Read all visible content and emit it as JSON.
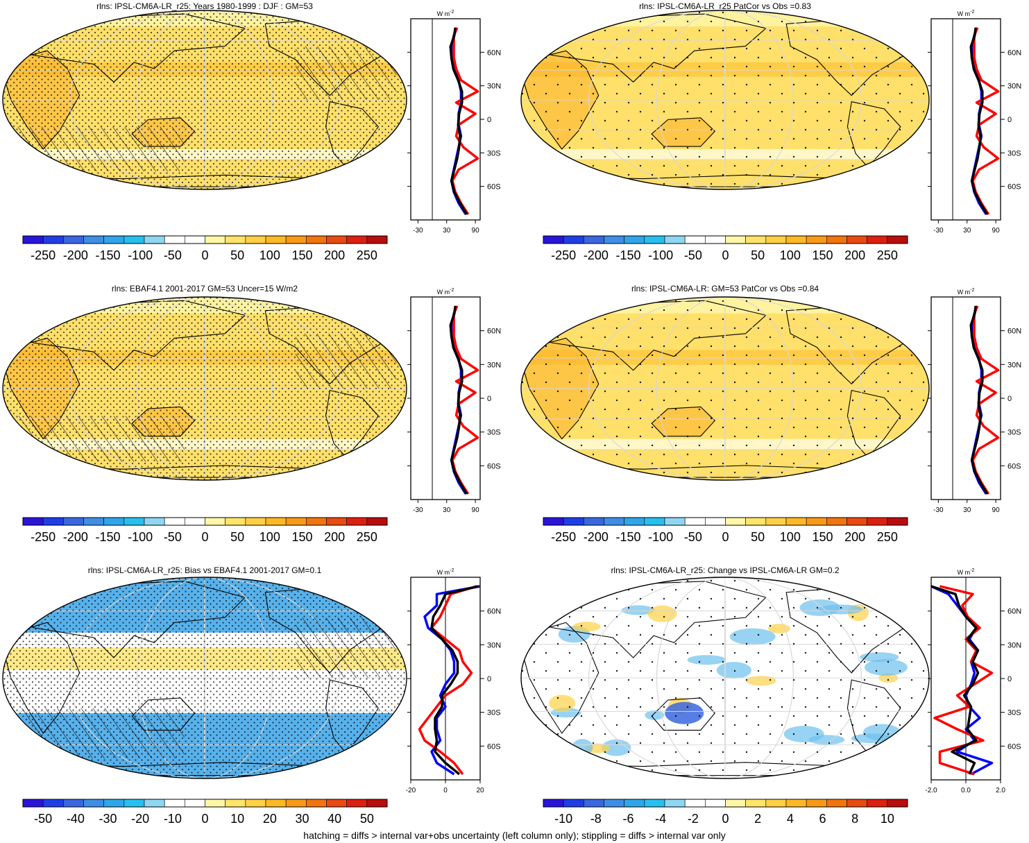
{
  "footer": "hatching = diffs > internal var+obs uncertainty (left column only); stippling = diffs > internal var only",
  "colors": {
    "scale": [
      "#2a14d8",
      "#1f3ee6",
      "#3a67e0",
      "#3f8ee6",
      "#2fa6ea",
      "#27bfee",
      "#8fd6f2",
      "#ffffff",
      "#ffffff",
      "#fff7a8",
      "#ffe46a",
      "#ffd045",
      "#fdb825",
      "#f89a17",
      "#f1740f",
      "#e84a12",
      "#dd1f10",
      "#b80d0d"
    ],
    "obs_line": "#ff0000",
    "model_line": "#0000ff",
    "mean_line": "#000000",
    "grid": "#d7d7d7"
  },
  "panels": [
    {
      "id": "p1",
      "title": "rlns: IPSL-CM6A-LR_r25: Years 1980-1999 : DJF : GM=53",
      "field": "abs",
      "map_fill": "#ffe06a",
      "hatch": true,
      "stipple": "dense",
      "cbar_labels": [
        "-250",
        "-200",
        "-150",
        "-100",
        "-50",
        "0",
        "50",
        "100",
        "150",
        "200",
        "250"
      ],
      "zonal_unit": "W m",
      "zonal_x_labels": [
        "-30",
        "30",
        "90"
      ],
      "zonal_x_values": [
        -30,
        30,
        90
      ],
      "zonal_xlim": [
        -45,
        100
      ],
      "lat_labels": [
        "60N",
        "30N",
        "0",
        "30S",
        "60S"
      ]
    },
    {
      "id": "p2",
      "title": "rlns: IPSL-CM6A-LR_r25 PatCor vs Obs =0.83",
      "field": "abs",
      "map_fill": "#ffe06a",
      "hatch": false,
      "stipple": "sparse",
      "cbar_labels": [
        "-250",
        "-200",
        "-150",
        "-100",
        "-50",
        "0",
        "50",
        "100",
        "150",
        "200",
        "250"
      ],
      "zonal_unit": "W m",
      "zonal_x_labels": [
        "-30",
        "30",
        "90"
      ],
      "zonal_x_values": [
        -30,
        30,
        90
      ],
      "zonal_xlim": [
        -45,
        100
      ],
      "lat_labels": [
        "60N",
        "30N",
        "0",
        "30S",
        "60S"
      ]
    },
    {
      "id": "p3",
      "title": "rlns: EBAF4.1 2001-2017 GM=53 Uncer=15 W/m2",
      "field": "abs",
      "map_fill": "#ffe06a",
      "hatch": true,
      "stipple": "dense",
      "cbar_labels": [
        "-250",
        "-200",
        "-150",
        "-100",
        "-50",
        "0",
        "50",
        "100",
        "150",
        "200",
        "250"
      ],
      "zonal_unit": "W m",
      "zonal_x_labels": [
        "-30",
        "30",
        "90"
      ],
      "zonal_x_values": [
        -30,
        30,
        90
      ],
      "zonal_xlim": [
        -45,
        100
      ],
      "lat_labels": [
        "60N",
        "30N",
        "0",
        "30S",
        "60S"
      ]
    },
    {
      "id": "p4",
      "title": "rlns: IPSL-CM6A-LR: GM=53 PatCor vs Obs =0.84",
      "field": "abs",
      "map_fill": "#ffe06a",
      "hatch": false,
      "stipple": "sparse",
      "cbar_labels": [
        "-250",
        "-200",
        "-150",
        "-100",
        "-50",
        "0",
        "50",
        "100",
        "150",
        "200",
        "250"
      ],
      "zonal_unit": "W m",
      "zonal_x_labels": [
        "-30",
        "30",
        "90"
      ],
      "zonal_x_values": [
        -30,
        30,
        90
      ],
      "zonal_xlim": [
        -45,
        100
      ],
      "lat_labels": [
        "60N",
        "30N",
        "0",
        "30S",
        "60S"
      ]
    },
    {
      "id": "p5",
      "title": "rlns: IPSL-CM6A-LR_r25: Bias vs EBAF4.1 2001-2017 GM=0.1",
      "field": "bias",
      "map_fill": "#ffffff",
      "hatch": true,
      "stipple": "dense",
      "cbar_labels": [
        "-50",
        "-40",
        "-30",
        "-20",
        "-10",
        "0",
        "10",
        "20",
        "30",
        "40",
        "50"
      ],
      "zonal_unit": "W m",
      "zonal_x_labels": [
        "-20",
        "0",
        "20"
      ],
      "zonal_x_values": [
        -20,
        0,
        20
      ],
      "zonal_xlim": [
        -20,
        20
      ],
      "lat_labels": [
        "60N",
        "30N",
        "0",
        "30S",
        "60S"
      ]
    },
    {
      "id": "p6",
      "title": "rlns: IPSL-CM6A-LR_r25: Change vs IPSL-CM6A-LR GM=0.2",
      "field": "change",
      "map_fill": "#ffffff",
      "hatch": false,
      "stipple": "sparse",
      "cbar_labels": [
        "-10",
        "-8",
        "-6",
        "-4",
        "-2",
        "0",
        "2",
        "4",
        "6",
        "8",
        "10"
      ],
      "zonal_unit": "W m",
      "zonal_x_labels": [
        "-2.0",
        "0.0",
        "2.0"
      ],
      "zonal_x_values": [
        -2,
        0,
        2
      ],
      "zonal_xlim": [
        -2,
        2
      ],
      "lat_labels": [
        "60N",
        "30N",
        "0",
        "30S",
        "60S"
      ]
    }
  ],
  "chart_data": [
    {
      "type": "line",
      "title": "rlns: IPSL-CM6A-LR_r25: Years 1980-1999 : DJF : GM=53",
      "xlabel": "W m-2",
      "xlim": [
        -45,
        100
      ],
      "ylim": [
        -90,
        90
      ],
      "y": [
        -85,
        -75,
        -65,
        -55,
        -45,
        -35,
        -25,
        -15,
        -5,
        5,
        15,
        25,
        35,
        45,
        55,
        65,
        75,
        82
      ],
      "series": [
        {
          "values": [
            70,
            55,
            45,
            40,
            45,
            50,
            55,
            60,
            55,
            55,
            60,
            60,
            55,
            45,
            40,
            40,
            45,
            50
          ]
        },
        {
          "values": [
            75,
            60,
            48,
            42,
            55,
            95,
            65,
            50,
            55,
            90,
            50,
            95,
            60,
            50,
            45,
            45,
            45,
            52
          ]
        },
        {
          "values": [
            72,
            58,
            46,
            40,
            46,
            52,
            56,
            58,
            54,
            56,
            62,
            62,
            54,
            44,
            40,
            38,
            46,
            48
          ]
        }
      ]
    },
    {
      "type": "line",
      "title": "rlns: IPSL-CM6A-LR_r25 PatCor vs Obs =0.83",
      "xlabel": "W m-2",
      "xlim": [
        -45,
        100
      ],
      "ylim": [
        -90,
        90
      ],
      "y": [
        -85,
        -75,
        -65,
        -55,
        -45,
        -35,
        -25,
        -15,
        -5,
        5,
        15,
        25,
        35,
        45,
        55,
        65,
        75,
        82
      ],
      "series": [
        {
          "values": [
            70,
            55,
            45,
            40,
            45,
            50,
            55,
            60,
            55,
            55,
            60,
            60,
            55,
            45,
            40,
            40,
            45,
            50
          ]
        },
        {
          "values": [
            75,
            60,
            48,
            42,
            55,
            95,
            65,
            50,
            55,
            90,
            50,
            95,
            60,
            50,
            45,
            45,
            45,
            52
          ]
        },
        {
          "values": [
            72,
            58,
            46,
            40,
            46,
            52,
            56,
            58,
            54,
            56,
            62,
            62,
            54,
            44,
            40,
            38,
            46,
            48
          ]
        }
      ]
    },
    {
      "type": "line",
      "title": "rlns: EBAF4.1 2001-2017 GM=53 Uncer=15 W/m2",
      "xlabel": "W m-2",
      "xlim": [
        -45,
        100
      ],
      "ylim": [
        -90,
        90
      ],
      "y": [
        -85,
        -75,
        -65,
        -55,
        -45,
        -35,
        -25,
        -15,
        -5,
        5,
        15,
        25,
        35,
        45,
        55,
        65,
        75,
        82
      ],
      "series": [
        {
          "values": [
            70,
            55,
            45,
            40,
            45,
            50,
            55,
            60,
            55,
            55,
            60,
            60,
            55,
            45,
            40,
            40,
            45,
            50
          ]
        },
        {
          "values": [
            75,
            60,
            48,
            42,
            55,
            95,
            65,
            50,
            55,
            90,
            50,
            95,
            60,
            50,
            45,
            45,
            45,
            52
          ]
        },
        {
          "values": [
            72,
            58,
            46,
            40,
            46,
            52,
            56,
            58,
            54,
            56,
            62,
            62,
            54,
            44,
            40,
            38,
            46,
            48
          ]
        }
      ]
    },
    {
      "type": "line",
      "title": "rlns: IPSL-CM6A-LR: GM=53 PatCor vs Obs =0.84",
      "xlabel": "W m-2",
      "xlim": [
        -45,
        100
      ],
      "ylim": [
        -90,
        90
      ],
      "y": [
        -85,
        -75,
        -65,
        -55,
        -45,
        -35,
        -25,
        -15,
        -5,
        5,
        15,
        25,
        35,
        45,
        55,
        65,
        75,
        82
      ],
      "series": [
        {
          "values": [
            70,
            55,
            45,
            40,
            45,
            50,
            55,
            60,
            55,
            55,
            60,
            60,
            55,
            45,
            40,
            40,
            45,
            50
          ]
        },
        {
          "values": [
            75,
            60,
            48,
            42,
            55,
            95,
            65,
            50,
            55,
            90,
            50,
            95,
            60,
            50,
            45,
            45,
            45,
            52
          ]
        },
        {
          "values": [
            72,
            58,
            46,
            40,
            46,
            52,
            56,
            58,
            54,
            56,
            62,
            62,
            54,
            44,
            40,
            38,
            46,
            48
          ]
        }
      ]
    },
    {
      "type": "line",
      "title": "rlns: IPSL-CM6A-LR_r25: Bias vs EBAF4.1 2001-2017 GM=0.1",
      "xlabel": "W m-2",
      "xlim": [
        -20,
        20
      ],
      "ylim": [
        -90,
        90
      ],
      "y": [
        -85,
        -75,
        -65,
        -55,
        -45,
        -35,
        -25,
        -15,
        -5,
        5,
        15,
        25,
        35,
        45,
        55,
        65,
        75,
        82
      ],
      "series": [
        {
          "values": [
            5,
            -5,
            -8,
            -3,
            -5,
            -5,
            0,
            -3,
            0,
            5,
            5,
            3,
            -2,
            -10,
            -12,
            -5,
            -5,
            20
          ]
        },
        {
          "values": [
            10,
            5,
            -3,
            -12,
            -15,
            -10,
            -5,
            0,
            10,
            15,
            10,
            8,
            0,
            -8,
            -3,
            0,
            3,
            18
          ]
        },
        {
          "values": [
            8,
            0,
            -6,
            -5,
            -6,
            -6,
            -2,
            -2,
            3,
            7,
            7,
            4,
            -2,
            -8,
            -7,
            -3,
            0,
            19
          ]
        }
      ]
    },
    {
      "type": "line",
      "title": "rlns: IPSL-CM6A-LR_r25: Change vs IPSL-CM6A-LR GM=0.2",
      "xlabel": "W m-2",
      "xlim": [
        -2,
        2
      ],
      "ylim": [
        -90,
        90
      ],
      "y": [
        -85,
        -75,
        -65,
        -55,
        -45,
        -35,
        -25,
        -15,
        -5,
        5,
        15,
        25,
        35,
        45,
        55,
        65,
        75,
        82
      ],
      "series": [
        {
          "values": [
            0.3,
            1.5,
            -0.5,
            0.5,
            0,
            0.8,
            0.2,
            0,
            0.3,
            0.5,
            0.3,
            0.7,
            0.2,
            0.6,
            0,
            -0.5,
            -1,
            -2
          ]
        },
        {
          "values": [
            0.5,
            -1.5,
            -1.5,
            1.0,
            -0.5,
            -1.8,
            0.2,
            -0.5,
            0.5,
            1.5,
            0.3,
            0.6,
            0,
            0.8,
            0.1,
            -0.2,
            0.4,
            -1.5
          ]
        },
        {
          "values": [
            0.2,
            0.5,
            -0.8,
            0.6,
            0.1,
            0.2,
            0.3,
            -0.1,
            0.4,
            0.7,
            0.4,
            0.7,
            0.1,
            0.6,
            0,
            -0.4,
            -0.6,
            -2
          ]
        }
      ]
    }
  ]
}
